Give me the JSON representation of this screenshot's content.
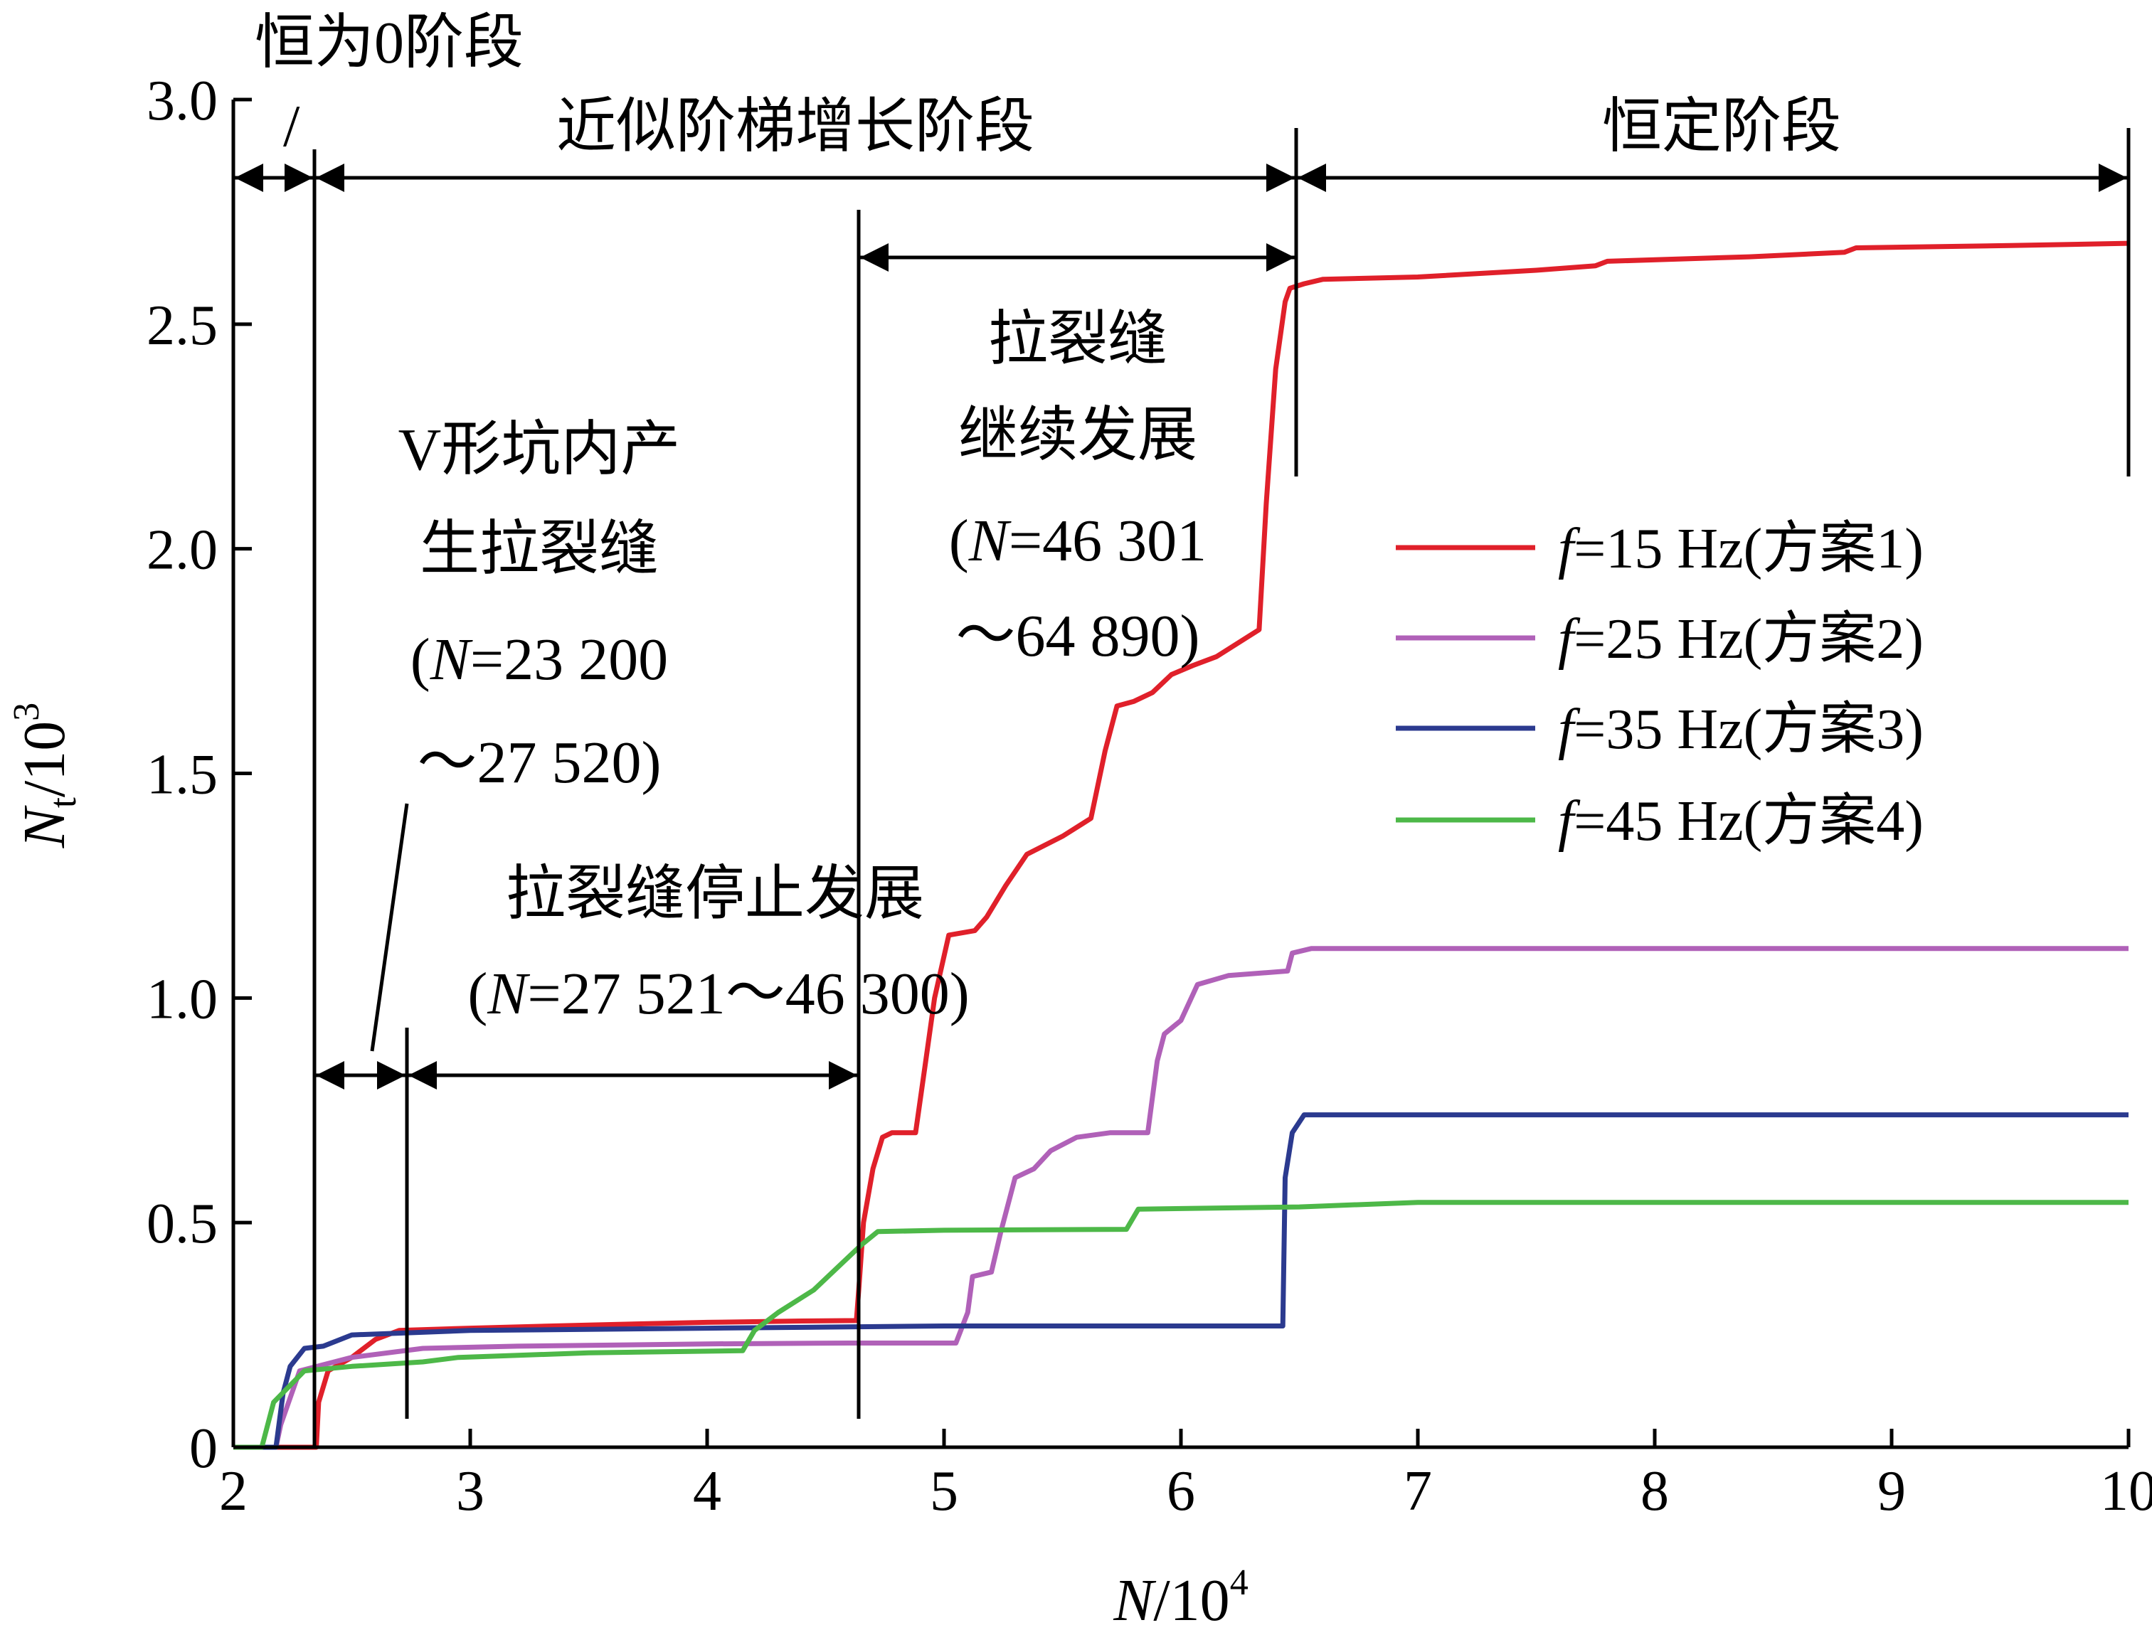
{
  "chart_data": {
    "type": "line",
    "xlabel": {
      "var": "N",
      "unit": "/10",
      "exp": "4"
    },
    "ylabel": {
      "var": "N",
      "sub": "t",
      "unit": "/10",
      "exp": "3"
    },
    "xlim": [
      2,
      10
    ],
    "ylim": [
      0,
      3.0
    ],
    "xticks": [
      2,
      3,
      4,
      5,
      6,
      7,
      8,
      9,
      10
    ],
    "xtick_labels": [
      "2",
      "3",
      "4",
      "5",
      "6",
      "7",
      "8",
      "9",
      "10"
    ],
    "yticks": [
      0,
      0.5,
      1.0,
      1.5,
      2.0,
      2.5,
      3.0
    ],
    "ytick_labels": [
      "0",
      "0.5",
      "1.0",
      "1.5",
      "2.0",
      "2.5",
      "3.0"
    ],
    "grid": false,
    "legend_position": "right",
    "series": [
      {
        "name_var": "f",
        "name_rest": "=15 Hz(方案1)",
        "color": "#e0202a",
        "points": [
          [
            2.0,
            0
          ],
          [
            2.35,
            0
          ],
          [
            2.36,
            0.1
          ],
          [
            2.4,
            0.17
          ],
          [
            2.5,
            0.2
          ],
          [
            2.6,
            0.24
          ],
          [
            2.7,
            0.26
          ],
          [
            3.0,
            0.265
          ],
          [
            3.5,
            0.272
          ],
          [
            4.0,
            0.278
          ],
          [
            4.4,
            0.281
          ],
          [
            4.63,
            0.282
          ],
          [
            4.64,
            0.35
          ],
          [
            4.66,
            0.5
          ],
          [
            4.7,
            0.62
          ],
          [
            4.74,
            0.69
          ],
          [
            4.78,
            0.7
          ],
          [
            4.88,
            0.7
          ],
          [
            4.92,
            0.85
          ],
          [
            4.96,
            1.0
          ],
          [
            5.02,
            1.14
          ],
          [
            5.13,
            1.15
          ],
          [
            5.18,
            1.18
          ],
          [
            5.26,
            1.25
          ],
          [
            5.35,
            1.32
          ],
          [
            5.5,
            1.36
          ],
          [
            5.62,
            1.4
          ],
          [
            5.68,
            1.55
          ],
          [
            5.73,
            1.65
          ],
          [
            5.8,
            1.66
          ],
          [
            5.88,
            1.68
          ],
          [
            5.96,
            1.72
          ],
          [
            6.05,
            1.74
          ],
          [
            6.15,
            1.76
          ],
          [
            6.33,
            1.82
          ],
          [
            6.36,
            2.1
          ],
          [
            6.4,
            2.4
          ],
          [
            6.44,
            2.55
          ],
          [
            6.46,
            2.58
          ],
          [
            6.52,
            2.59
          ],
          [
            6.6,
            2.6
          ],
          [
            7.0,
            2.605
          ],
          [
            7.5,
            2.62
          ],
          [
            7.75,
            2.63
          ],
          [
            7.8,
            2.64
          ],
          [
            8.4,
            2.65
          ],
          [
            8.8,
            2.66
          ],
          [
            8.85,
            2.67
          ],
          [
            9.5,
            2.675
          ],
          [
            10.0,
            2.68
          ]
        ]
      },
      {
        "name_var": "f",
        "name_rest": "=25 Hz(方案2)",
        "color": "#b061b8",
        "points": [
          [
            2.0,
            0
          ],
          [
            2.18,
            0
          ],
          [
            2.2,
            0.05
          ],
          [
            2.28,
            0.17
          ],
          [
            2.5,
            0.2
          ],
          [
            2.8,
            0.22
          ],
          [
            3.2,
            0.225
          ],
          [
            4.0,
            0.23
          ],
          [
            4.6,
            0.232
          ],
          [
            5.05,
            0.232
          ],
          [
            5.1,
            0.3
          ],
          [
            5.12,
            0.38
          ],
          [
            5.2,
            0.39
          ],
          [
            5.24,
            0.48
          ],
          [
            5.3,
            0.6
          ],
          [
            5.38,
            0.62
          ],
          [
            5.45,
            0.66
          ],
          [
            5.56,
            0.69
          ],
          [
            5.7,
            0.7
          ],
          [
            5.86,
            0.7
          ],
          [
            5.9,
            0.86
          ],
          [
            5.93,
            0.92
          ],
          [
            6.0,
            0.95
          ],
          [
            6.07,
            1.03
          ],
          [
            6.2,
            1.05
          ],
          [
            6.45,
            1.06
          ],
          [
            6.47,
            1.1
          ],
          [
            6.55,
            1.11
          ],
          [
            10.0,
            1.11
          ]
        ]
      },
      {
        "name_var": "f",
        "name_rest": "=35 Hz(方案3)",
        "color": "#2b3a8f",
        "points": [
          [
            2.0,
            0
          ],
          [
            2.18,
            0
          ],
          [
            2.21,
            0.12
          ],
          [
            2.24,
            0.18
          ],
          [
            2.3,
            0.22
          ],
          [
            2.38,
            0.225
          ],
          [
            2.5,
            0.25
          ],
          [
            3.0,
            0.26
          ],
          [
            4.0,
            0.265
          ],
          [
            5.0,
            0.27
          ],
          [
            6.43,
            0.27
          ],
          [
            6.44,
            0.6
          ],
          [
            6.47,
            0.7
          ],
          [
            6.52,
            0.74
          ],
          [
            10.0,
            0.74
          ]
        ]
      },
      {
        "name_var": "f",
        "name_rest": "=45 Hz(方案4)",
        "color": "#4db848",
        "points": [
          [
            2.0,
            0
          ],
          [
            2.12,
            0
          ],
          [
            2.17,
            0.1
          ],
          [
            2.3,
            0.17
          ],
          [
            2.5,
            0.18
          ],
          [
            2.8,
            0.19
          ],
          [
            2.95,
            0.2
          ],
          [
            3.5,
            0.21
          ],
          [
            4.15,
            0.215
          ],
          [
            4.2,
            0.26
          ],
          [
            4.3,
            0.3
          ],
          [
            4.45,
            0.35
          ],
          [
            4.55,
            0.4
          ],
          [
            4.65,
            0.45
          ],
          [
            4.72,
            0.48
          ],
          [
            5.0,
            0.483
          ],
          [
            5.77,
            0.485
          ],
          [
            5.82,
            0.53
          ],
          [
            6.5,
            0.535
          ],
          [
            7.0,
            0.545
          ],
          [
            10.0,
            0.545
          ]
        ]
      }
    ],
    "annotations": {
      "stage_zero": "恒为0阶段",
      "stage_zero_slash": "/",
      "stage_step": "近似阶梯增长阶段",
      "stage_const": "恒定阶段",
      "v_pit_l1": "V形坑内产",
      "v_pit_l2": "生拉裂缝",
      "v_pit_range_l1_pre": "(",
      "v_pit_range_l1_var": "N",
      "v_pit_range_l1_post": "=23 200",
      "v_pit_range_l2": "～27 520)",
      "stop_l1": "拉裂缝停止发展",
      "stop_l2_pre": "(",
      "stop_l2_var": "N",
      "stop_l2_post": "=27 521～46 300)",
      "cont_l1": "拉裂缝",
      "cont_l2": "继续发展",
      "cont_l3_pre": "(",
      "cont_l3_var": "N",
      "cont_l3_post": "=46 301",
      "cont_l4": "～64 890)"
    }
  }
}
